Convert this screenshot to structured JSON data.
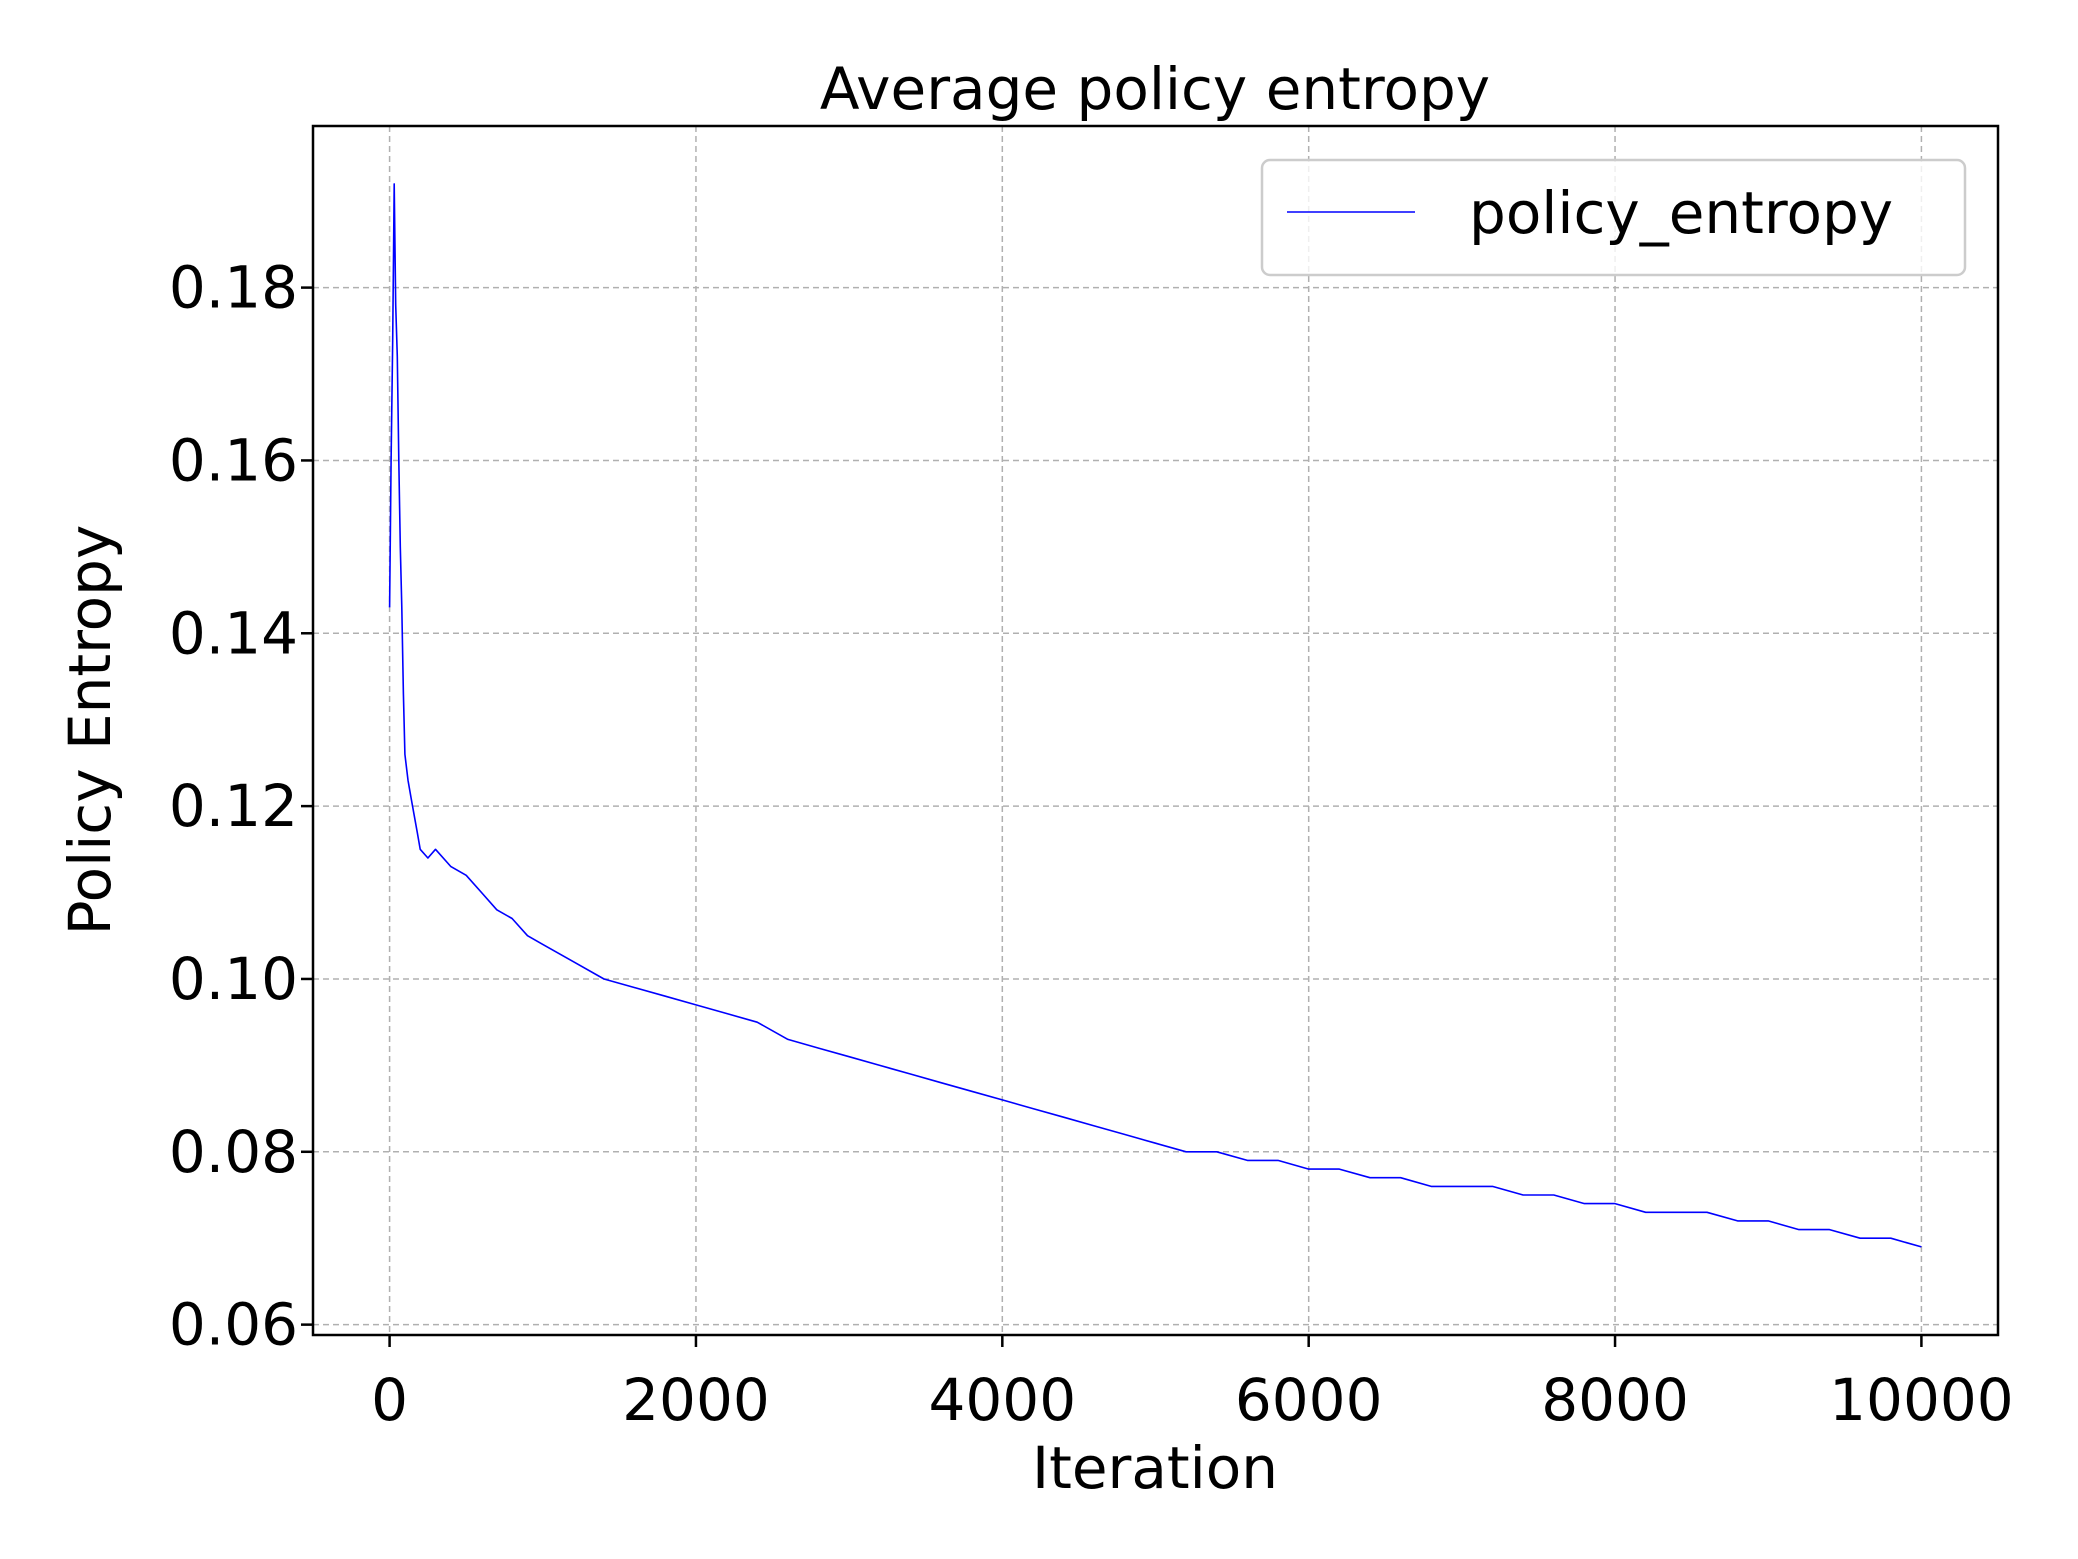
{
  "chart_data": {
    "type": "line",
    "title": "Average policy entropy",
    "xlabel": "Iteration",
    "ylabel": "Policy Entropy",
    "xlim": [
      -500,
      10500
    ],
    "ylim": [
      0.0588,
      0.1987
    ],
    "x_ticks": [
      0,
      2000,
      4000,
      6000,
      8000,
      10000
    ],
    "y_ticks": [
      0.06,
      0.08,
      0.1,
      0.12,
      0.14,
      0.16,
      0.18
    ],
    "x_tick_labels": [
      "0",
      "2000",
      "4000",
      "6000",
      "8000",
      "10000"
    ],
    "y_tick_labels": [
      "0.06",
      "0.08",
      "0.10",
      "0.12",
      "0.14",
      "0.16",
      "0.18"
    ],
    "grid": true,
    "legend_position": "top-right",
    "series": [
      {
        "name": "policy_entropy",
        "color": "#0000ff",
        "x": [
          0,
          10,
          20,
          30,
          40,
          50,
          60,
          70,
          80,
          90,
          100,
          120,
          140,
          160,
          180,
          200,
          250,
          300,
          400,
          500,
          600,
          700,
          800,
          900,
          1000,
          1200,
          1400,
          1600,
          1800,
          2000,
          2200,
          2400,
          2600,
          2800,
          3000,
          3200,
          3400,
          3600,
          3800,
          4000,
          4200,
          4400,
          4600,
          4800,
          5000,
          5200,
          5400,
          5600,
          5800,
          6000,
          6200,
          6400,
          6600,
          6800,
          7000,
          7200,
          7400,
          7600,
          7800,
          8000,
          8200,
          8400,
          8600,
          8800,
          9000,
          9200,
          9400,
          9600,
          9800,
          10000
        ],
        "values": [
          0.143,
          0.16,
          0.174,
          0.192,
          0.178,
          0.172,
          0.16,
          0.15,
          0.143,
          0.133,
          0.126,
          0.123,
          0.121,
          0.119,
          0.117,
          0.115,
          0.114,
          0.115,
          0.113,
          0.112,
          0.11,
          0.108,
          0.107,
          0.105,
          0.104,
          0.102,
          0.1,
          0.099,
          0.098,
          0.097,
          0.096,
          0.095,
          0.093,
          0.092,
          0.091,
          0.09,
          0.089,
          0.088,
          0.087,
          0.086,
          0.085,
          0.084,
          0.083,
          0.082,
          0.081,
          0.08,
          0.08,
          0.079,
          0.079,
          0.078,
          0.078,
          0.077,
          0.077,
          0.076,
          0.076,
          0.076,
          0.075,
          0.075,
          0.074,
          0.074,
          0.073,
          0.073,
          0.073,
          0.072,
          0.072,
          0.071,
          0.071,
          0.07,
          0.07,
          0.069
        ]
      }
    ]
  }
}
